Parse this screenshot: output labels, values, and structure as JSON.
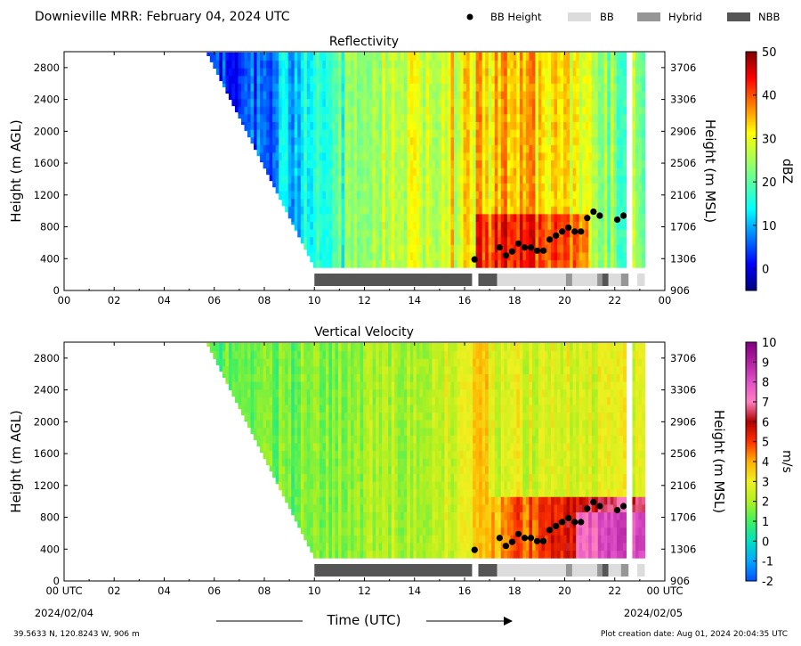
{
  "header": {
    "title": "Downieville MRR:  February 04, 2024 UTC",
    "legend": [
      {
        "label": "BB Height",
        "kind": "dot",
        "color": "#000000"
      },
      {
        "label": "BB",
        "kind": "box",
        "color": "#dcdcdc"
      },
      {
        "label": "Hybrid",
        "kind": "box",
        "color": "#969696"
      },
      {
        "label": "NBB",
        "kind": "box",
        "color": "#555555"
      }
    ]
  },
  "footer": {
    "coords": "39.5633 N, 120.8243 W, 906 m",
    "creation": "Plot creation date: Aug 01, 2024 20:04:35 UTC",
    "start_date": "2024/02/04",
    "end_date": "2024/02/05"
  },
  "chart_data": [
    {
      "type": "heatmap",
      "title": "Reflectivity",
      "xlabel": "",
      "ylabel": "Height (m AGL)",
      "y2label": "Height (m MSL)",
      "xlim": [
        0,
        24
      ],
      "ylim": [
        0,
        3000
      ],
      "x_ticks": [
        "00",
        "02",
        "04",
        "06",
        "08",
        "10",
        "12",
        "14",
        "16",
        "18",
        "20",
        "22",
        "00"
      ],
      "y_ticks": [
        0,
        400,
        800,
        1200,
        1600,
        2000,
        2400,
        2800
      ],
      "y2_ticks": [
        906,
        1306,
        1706,
        2106,
        2506,
        2906,
        3306,
        3706
      ],
      "colorbar": {
        "label": "dBZ",
        "min": -5,
        "max": 50,
        "ticks": [
          0,
          10,
          20,
          30,
          40,
          50
        ]
      },
      "echo_top_m": 2990,
      "echo_bottom_m": 290,
      "echo_start_time_utc": 5.7,
      "echo_end_time_utc": 23.2,
      "reflectivity_trend_dbz": [
        {
          "time": 6.0,
          "dbz": 2
        },
        {
          "time": 8.0,
          "dbz": 8
        },
        {
          "time": 10.0,
          "dbz": 14
        },
        {
          "time": 12.0,
          "dbz": 24
        },
        {
          "time": 14.0,
          "dbz": 29
        },
        {
          "time": 16.0,
          "dbz": 30
        },
        {
          "time": 18.0,
          "dbz": 36
        },
        {
          "time": 20.0,
          "dbz": 30
        },
        {
          "time": 22.0,
          "dbz": 22
        }
      ],
      "bb_height": {
        "time": [
          16.4,
          17.4,
          17.65,
          17.9,
          18.15,
          18.4,
          18.65,
          18.9,
          19.15,
          19.4,
          19.65,
          19.9,
          20.15,
          20.4,
          20.65,
          20.9,
          21.15,
          21.4,
          22.1,
          22.35
        ],
        "height": [
          390,
          540,
          440,
          490,
          590,
          540,
          540,
          500,
          500,
          640,
          690,
          740,
          790,
          740,
          740,
          910,
          990,
          940,
          890,
          940
        ]
      },
      "bb_type_segments": [
        {
          "type": "NBB",
          "start": 10.0,
          "end": 16.3
        },
        {
          "type": "NBB",
          "start": 16.55,
          "end": 17.3
        },
        {
          "type": "BB",
          "start": 17.3,
          "end": 20.05
        },
        {
          "type": "Hybrid",
          "start": 20.05,
          "end": 20.3
        },
        {
          "type": "BB",
          "start": 20.3,
          "end": 21.3
        },
        {
          "type": "Hybrid",
          "start": 21.3,
          "end": 21.5
        },
        {
          "type": "NBB",
          "start": 21.5,
          "end": 21.75
        },
        {
          "type": "BB",
          "start": 21.75,
          "end": 22.25
        },
        {
          "type": "Hybrid",
          "start": 22.25,
          "end": 22.55
        },
        {
          "type": "BB",
          "start": 22.9,
          "end": 23.2
        }
      ]
    },
    {
      "type": "heatmap",
      "title": "Vertical Velocity",
      "xlabel": "Time (UTC)",
      "ylabel": "Height (m AGL)",
      "y2label": "Height (m MSL)",
      "xlim": [
        0,
        24
      ],
      "ylim": [
        0,
        3000
      ],
      "x_ticks": [
        "00 UTC",
        "02",
        "04",
        "06",
        "08",
        "10",
        "12",
        "14",
        "16",
        "18",
        "20",
        "22",
        "00 UTC"
      ],
      "y_ticks": [
        0,
        400,
        800,
        1200,
        1600,
        2000,
        2400,
        2800
      ],
      "y2_ticks": [
        906,
        1306,
        1706,
        2106,
        2506,
        2906,
        3306,
        3706
      ],
      "colorbar": {
        "label": "m/s",
        "min": -2,
        "max": 10,
        "ticks": [
          -2,
          -1,
          0,
          1,
          2,
          3,
          4,
          5,
          6,
          7,
          8,
          9,
          10
        ]
      },
      "echo_top_m": 2990,
      "echo_bottom_m": 290,
      "echo_start_time_utc": 5.7,
      "echo_end_time_utc": 23.2,
      "velocity_trend_ms": [
        {
          "time": 6.0,
          "v": 1.2
        },
        {
          "time": 8.0,
          "v": 1.3
        },
        {
          "time": 10.0,
          "v": 1.5
        },
        {
          "time": 12.0,
          "v": 1.8
        },
        {
          "time": 14.0,
          "v": 2.2
        },
        {
          "time": 16.0,
          "v": 2.8
        },
        {
          "time": 18.0,
          "v": 4.5
        },
        {
          "time": 20.0,
          "v": 5.5
        },
        {
          "time": 22.0,
          "v": 6.5
        }
      ],
      "bb_height": {
        "time": [
          16.4,
          17.4,
          17.65,
          17.9,
          18.15,
          18.4,
          18.65,
          18.9,
          19.15,
          19.4,
          19.65,
          19.9,
          20.15,
          20.4,
          20.65,
          20.9,
          21.15,
          21.4,
          22.1,
          22.35
        ],
        "height": [
          390,
          540,
          440,
          490,
          590,
          540,
          540,
          500,
          500,
          640,
          690,
          740,
          790,
          740,
          740,
          910,
          990,
          940,
          890,
          940
        ]
      },
      "bb_type_segments": [
        {
          "type": "NBB",
          "start": 10.0,
          "end": 16.3
        },
        {
          "type": "NBB",
          "start": 16.55,
          "end": 17.3
        },
        {
          "type": "BB",
          "start": 17.3,
          "end": 20.05
        },
        {
          "type": "Hybrid",
          "start": 20.05,
          "end": 20.3
        },
        {
          "type": "BB",
          "start": 20.3,
          "end": 21.3
        },
        {
          "type": "Hybrid",
          "start": 21.3,
          "end": 21.5
        },
        {
          "type": "NBB",
          "start": 21.5,
          "end": 21.75
        },
        {
          "type": "BB",
          "start": 21.75,
          "end": 22.25
        },
        {
          "type": "Hybrid",
          "start": 22.25,
          "end": 22.55
        },
        {
          "type": "BB",
          "start": 22.9,
          "end": 23.2
        }
      ]
    }
  ]
}
